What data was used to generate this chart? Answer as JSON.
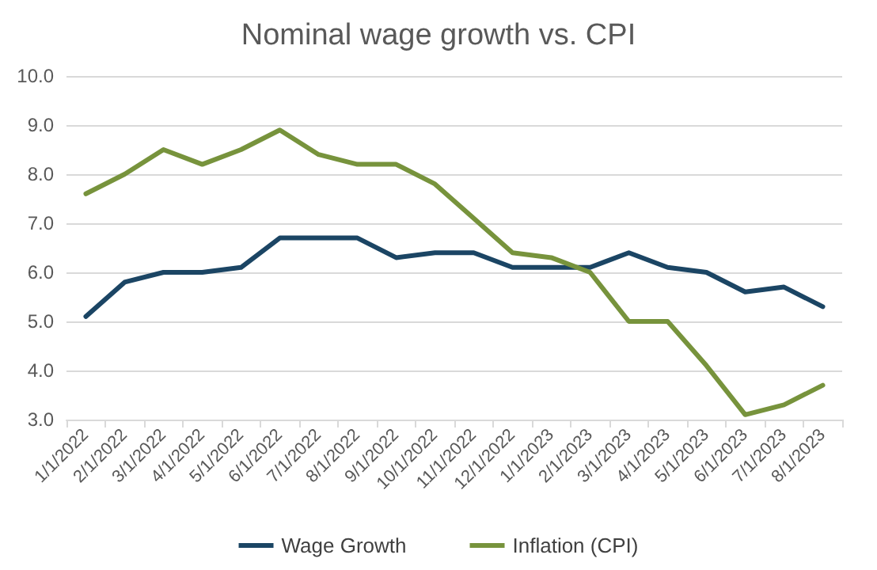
{
  "chart_data": {
    "type": "line",
    "title": "Nominal wage growth vs. CPI",
    "categories": [
      "1/1/2022",
      "2/1/2022",
      "3/1/2022",
      "4/1/2022",
      "5/1/2022",
      "6/1/2022",
      "7/1/2022",
      "8/1/2022",
      "9/1/2022",
      "10/1/2022",
      "11/1/2022",
      "12/1/2022",
      "1/1/2023",
      "2/1/2023",
      "3/1/2023",
      "4/1/2023",
      "5/1/2023",
      "6/1/2023",
      "7/1/2023",
      "8/1/2023"
    ],
    "series": [
      {
        "name": "Wage Growth",
        "color": "#1b4564",
        "values": [
          5.1,
          5.8,
          6.0,
          6.0,
          6.1,
          6.7,
          6.7,
          6.7,
          6.3,
          6.4,
          6.4,
          6.1,
          6.1,
          6.1,
          6.4,
          6.1,
          6.0,
          5.6,
          5.7,
          5.3
        ]
      },
      {
        "name": "Inflation (CPI)",
        "color": "#77933c",
        "values": [
          7.6,
          8.0,
          8.5,
          8.2,
          8.5,
          8.9,
          8.4,
          8.2,
          8.2,
          7.8,
          7.1,
          6.4,
          6.3,
          6.0,
          5.0,
          5.0,
          4.1,
          3.1,
          3.3,
          3.7
        ]
      }
    ],
    "ylim": [
      3,
      10
    ],
    "yticks": [
      {
        "value": 3,
        "label": "3.0"
      },
      {
        "value": 4,
        "label": "4.0"
      },
      {
        "value": 5,
        "label": "5.0"
      },
      {
        "value": 6,
        "label": "6.0"
      },
      {
        "value": 7,
        "label": "7.0"
      },
      {
        "value": 8,
        "label": "8.0"
      },
      {
        "value": 9,
        "label": "9.0"
      },
      {
        "value": 10,
        "label": "10.0"
      }
    ],
    "grid": "y",
    "legend": "bottom",
    "marker": "none",
    "line_style": "solid"
  }
}
